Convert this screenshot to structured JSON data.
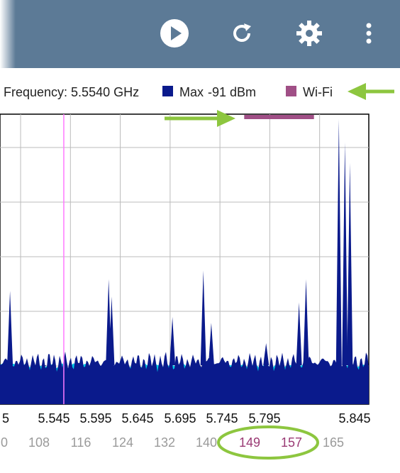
{
  "toolbar": {
    "actions": [
      "play-icon",
      "refresh-icon",
      "settings-icon",
      "more-vert-icon"
    ],
    "background": "#5c7a96"
  },
  "legend": {
    "frequency_text": "Frequency: 5.5540 GHz",
    "max_label": "Max",
    "max_value": "-91 dBm",
    "wifi_label": "Wi-Fi",
    "max_color": "#0a1a8c",
    "wifi_color": "#a04f86"
  },
  "chart_data": {
    "type": "area",
    "frequency_ticks": [
      "5",
      "5.545",
      "5.595",
      "5.645",
      "5.695",
      "5.745",
      "5.795",
      "5.845"
    ],
    "channel_ticks": [
      "0",
      "108",
      "116",
      "124",
      "132",
      "140",
      "149",
      "157",
      "165"
    ],
    "highlighted_channels": [
      "149",
      "157"
    ],
    "marker_frequency_ghz": 5.554,
    "wifi_band_ghz": [
      5.735,
      5.805
    ],
    "x_range_ghz": [
      5.49,
      5.86
    ],
    "grid": true,
    "peaks": [
      {
        "freq_ghz": 5.5,
        "level": 0.39
      },
      {
        "freq_ghz": 5.534,
        "level": 0.13
      },
      {
        "freq_ghz": 5.599,
        "level": 0.43
      },
      {
        "freq_ghz": 5.602,
        "level": 0.37
      },
      {
        "freq_ghz": 5.663,
        "level": 0.3
      },
      {
        "freq_ghz": 5.694,
        "level": 0.46
      },
      {
        "freq_ghz": 5.702,
        "level": 0.28
      },
      {
        "freq_ghz": 5.757,
        "level": 0.21
      },
      {
        "freq_ghz": 5.797,
        "level": 0.43
      },
      {
        "freq_ghz": 5.79,
        "level": 0.35
      },
      {
        "freq_ghz": 5.83,
        "level": 0.98
      },
      {
        "freq_ghz": 5.836,
        "level": 0.9
      },
      {
        "freq_ghz": 5.841,
        "level": 0.83
      }
    ]
  },
  "colors": {
    "max_trace": "#0a1a8c",
    "marker_line": "#ff7aff",
    "highlight": "#9a3a74",
    "annotation": "#8dc63f"
  }
}
